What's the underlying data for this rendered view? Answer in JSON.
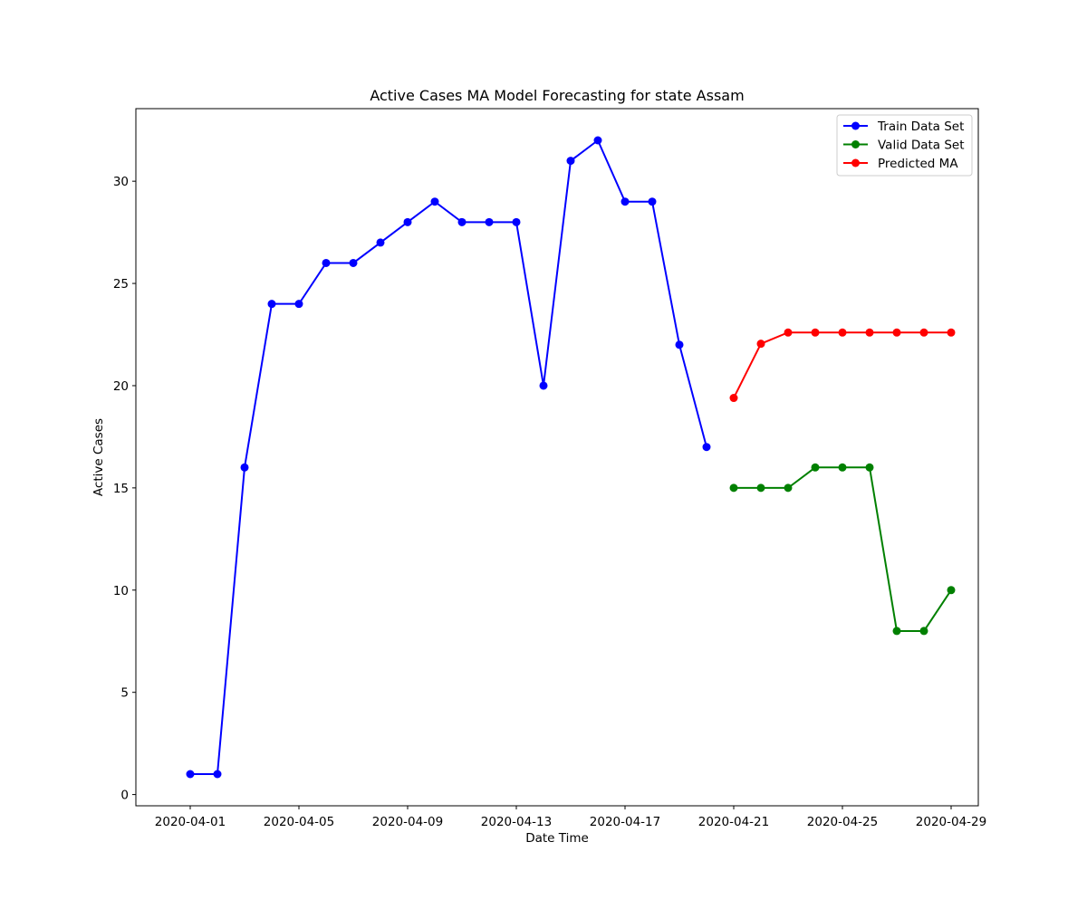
{
  "chart_data": {
    "type": "line",
    "title": "Active Cases MA Model Forecasting for state Assam",
    "xlabel": "Date Time",
    "ylabel": "Active Cases",
    "xlim": [
      "2020-03-30",
      "2020-04-30"
    ],
    "ylim": [
      -0.55,
      33.55
    ],
    "x_ticks": [
      "2020-04-01",
      "2020-04-05",
      "2020-04-09",
      "2020-04-13",
      "2020-04-17",
      "2020-04-21",
      "2020-04-25",
      "2020-04-29"
    ],
    "y_ticks": [
      0,
      5,
      10,
      15,
      20,
      25,
      30
    ],
    "grid": false,
    "legend_position": "top-right",
    "series": [
      {
        "name": "Train Data Set",
        "color": "#0000ff",
        "marker": "circle",
        "x": [
          "2020-04-01",
          "2020-04-02",
          "2020-04-03",
          "2020-04-04",
          "2020-04-05",
          "2020-04-06",
          "2020-04-07",
          "2020-04-08",
          "2020-04-09",
          "2020-04-10",
          "2020-04-11",
          "2020-04-12",
          "2020-04-13",
          "2020-04-14",
          "2020-04-15",
          "2020-04-16",
          "2020-04-17",
          "2020-04-18",
          "2020-04-19",
          "2020-04-20"
        ],
        "values": [
          1,
          1,
          16,
          24,
          24,
          26,
          26,
          27,
          28,
          29,
          28,
          28,
          28,
          20,
          31,
          32,
          29,
          29,
          22,
          17
        ]
      },
      {
        "name": "Valid Data Set",
        "color": "#008000",
        "marker": "circle",
        "x": [
          "2020-04-21",
          "2020-04-22",
          "2020-04-23",
          "2020-04-24",
          "2020-04-25",
          "2020-04-26",
          "2020-04-27",
          "2020-04-28",
          "2020-04-29"
        ],
        "values": [
          15,
          15,
          15,
          16,
          16,
          16,
          8,
          8,
          10
        ]
      },
      {
        "name": "Predicted MA",
        "color": "#ff0000",
        "marker": "circle",
        "x": [
          "2020-04-21",
          "2020-04-22",
          "2020-04-23",
          "2020-04-24",
          "2020-04-25",
          "2020-04-26",
          "2020-04-27",
          "2020-04-28",
          "2020-04-29"
        ],
        "values": [
          19.4,
          22.05,
          22.6,
          22.6,
          22.6,
          22.6,
          22.6,
          22.6,
          22.6
        ]
      }
    ]
  }
}
